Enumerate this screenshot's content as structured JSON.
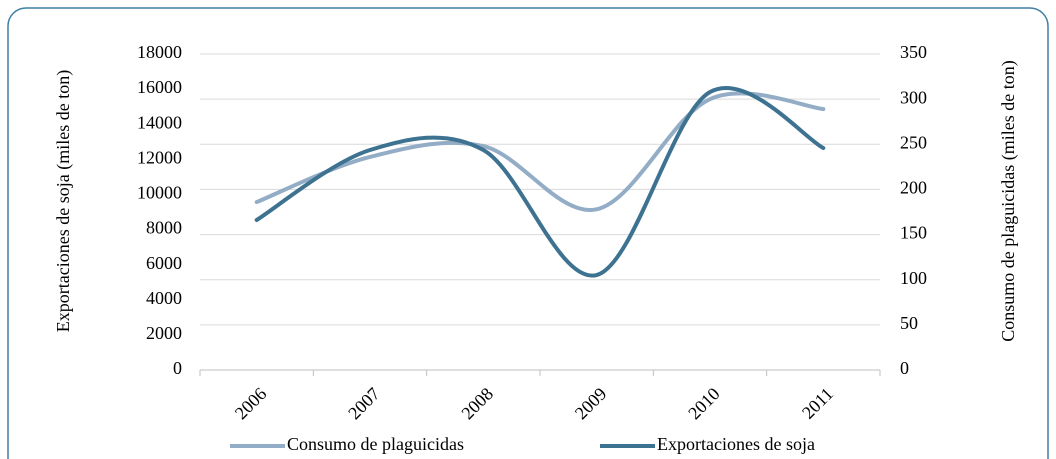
{
  "chart_data": {
    "type": "line",
    "categories": [
      "2006",
      "2007",
      "2008",
      "2009",
      "2010",
      "2011"
    ],
    "y_label": "Exportaciones de soja (miles de ton)",
    "y2_label": "Consumo de plaguicidas (miles de ton)",
    "ylim": [
      0,
      18000
    ],
    "yticks": [
      0,
      2000,
      4000,
      6000,
      8000,
      10000,
      12000,
      14000,
      16000,
      18000
    ],
    "y2lim": [
      0,
      350
    ],
    "y2ticks": [
      0,
      50,
      100,
      150,
      200,
      250,
      300,
      350
    ],
    "grid": true,
    "smooth": true,
    "legend": "bottom",
    "series": [
      {
        "name": "Consumo de plaguicidas",
        "color": "#93adc6",
        "axis": "y2",
        "values": [
          186,
          236,
          248,
          178,
          300,
          289
        ]
      },
      {
        "name": "Exportaciones de soja",
        "color": "#3e7291",
        "values": [
          8544,
          12532,
          12532,
          5411,
          15835,
          12646
        ]
      }
    ]
  }
}
